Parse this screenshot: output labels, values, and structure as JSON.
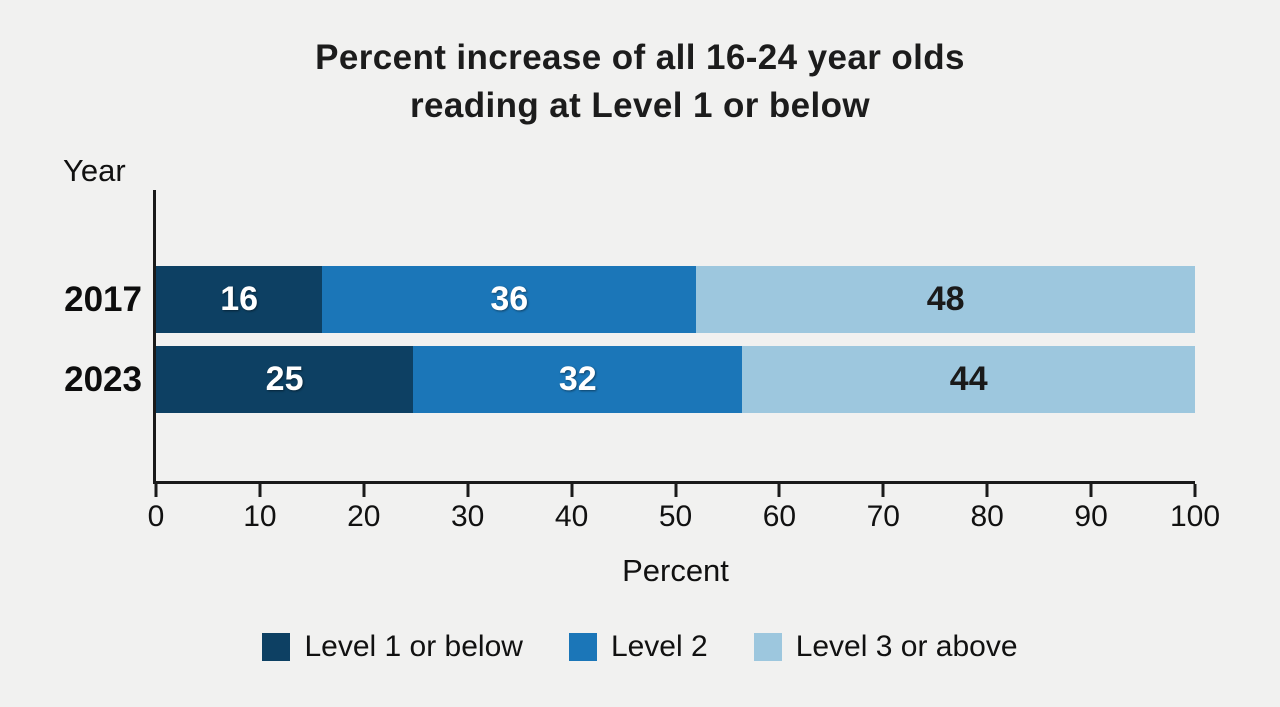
{
  "chart_data": {
    "type": "bar",
    "orientation": "horizontal",
    "stacked": true,
    "title": "Percent increase of all 16-24 year olds reading at Level 1 or below",
    "title_lines": [
      "Percent increase of all 16-24 year olds",
      "reading at Level 1 or below"
    ],
    "ylabel": "Year",
    "xlabel": "Percent",
    "categories": [
      "2017",
      "2023"
    ],
    "series": [
      {
        "name": "Level 1 or below",
        "color": "#0d4063",
        "label_color": "#ffffff",
        "values": [
          16,
          25
        ]
      },
      {
        "name": "Level 2",
        "color": "#1b76b8",
        "label_color": "#ffffff",
        "values": [
          36,
          32
        ]
      },
      {
        "name": "Level 3 or above",
        "color": "#9dc7de",
        "label_color": "#1a1a1a",
        "values": [
          48,
          44
        ]
      }
    ],
    "xlim": [
      0,
      100
    ],
    "xticks": [
      0,
      10,
      20,
      30,
      40,
      50,
      60,
      70,
      80,
      90,
      100
    ],
    "legend_position": "bottom",
    "grid": false,
    "background_color": "#f1f1f0",
    "axis_color": "#1a1a1a"
  }
}
